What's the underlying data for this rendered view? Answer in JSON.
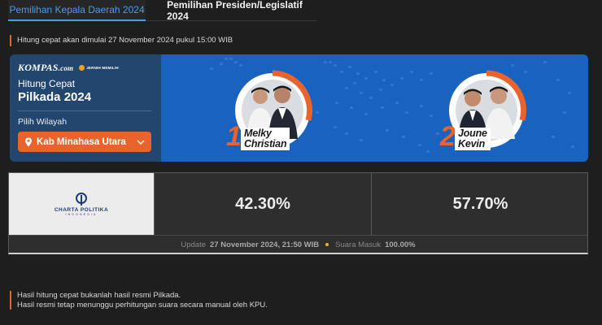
{
  "tabs": [
    {
      "label": "Pemilihan Kepala Daerah 2024",
      "active": true
    },
    {
      "label": "Pemilihan Presiden/Legislatif 2024",
      "active": false
    }
  ],
  "notice": "Hitung cepat akan dimulai 27 November 2024 pukul 15:00 WIB",
  "panel": {
    "kompas_logo": "KOMPAS",
    "kompas_logo_suffix": ".com",
    "partner_logo": "JERNIH MEMILIH",
    "subtitle": "Hitung Cepat",
    "title": "Pilkada 2024",
    "select_label": "Pilih Wilayah",
    "selected_region": "Kab Minahasa Utara",
    "pin_icon": "map-pin-icon",
    "chevron_icon": "chevron-down-icon"
  },
  "candidates": [
    {
      "number": "1",
      "name_line1": "Melky",
      "name_line2": "Christian"
    },
    {
      "number": "2",
      "name_line1": "Joune",
      "name_line2": "Kevin"
    }
  ],
  "results": {
    "pollster": "CHARTA POLITIKA",
    "pollster_sub": "INDONESIA",
    "pct_1": "42.30%",
    "pct_2": "57.70%",
    "update_prefix": "Update",
    "update_time": "27 November 2024, 21:50 WIB",
    "votes_prefix": "Suara Masuk",
    "votes_value": "100.00%"
  },
  "disclaimer": {
    "line1": "Hasil hitung cepat bukanlah hasil resmi Pilkada.",
    "line2": "Hasil resmi tetap menunggu perhitungan suara secara manual oleh KPU."
  },
  "colors": {
    "accent_orange": "#e8642c",
    "tab_blue": "#4d9bf0",
    "panel_navy": "#23466f",
    "banner_blue": "#1a62bf"
  }
}
